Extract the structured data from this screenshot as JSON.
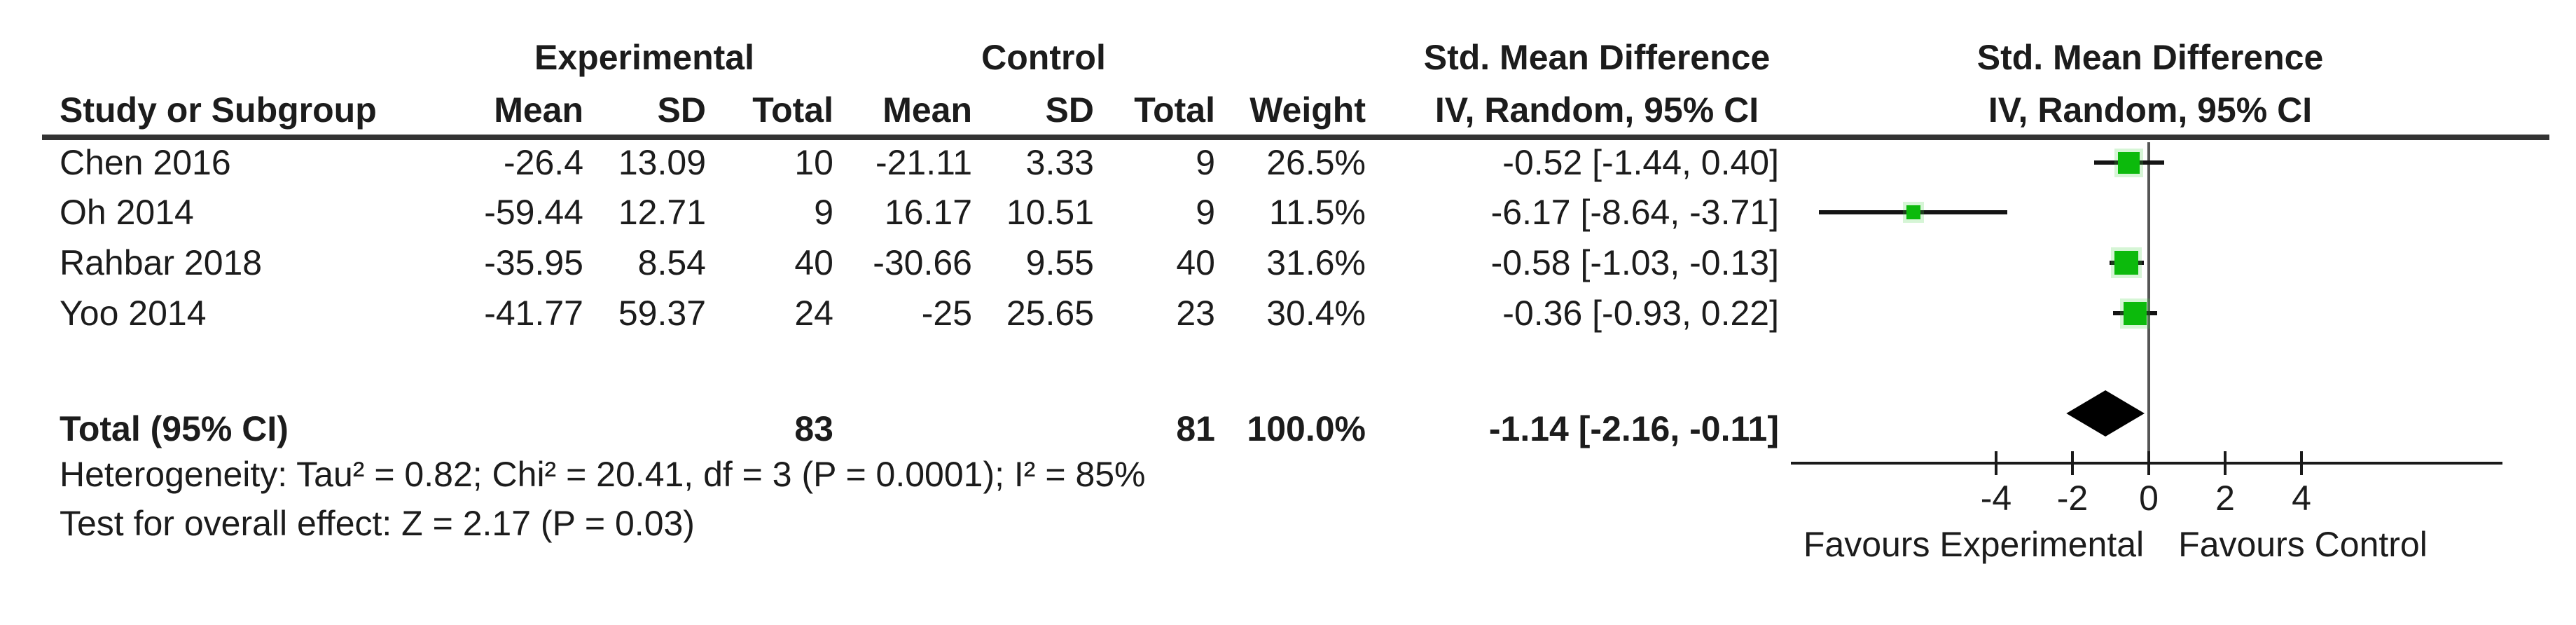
{
  "colors": {
    "marker_green": "#0cba0c",
    "diamond_black": "#000000",
    "text": "#1c1c1c",
    "rule": "#333333",
    "zero_line": "#555555"
  },
  "header": {
    "group": {
      "experimental": "Experimental",
      "control": "Control",
      "smd_text": "Std. Mean Difference",
      "smd_plot": "Std. Mean Difference"
    },
    "cols": {
      "study": "Study or Subgroup",
      "e_mean": "Mean",
      "e_sd": "SD",
      "e_total": "Total",
      "c_mean": "Mean",
      "c_sd": "SD",
      "c_total": "Total",
      "weight": "Weight",
      "iv_text": "IV, Random, 95% CI",
      "iv_plot": "IV, Random, 95% CI"
    }
  },
  "rows": [
    {
      "study": "Chen 2016",
      "e_mean": "-26.4",
      "e_sd": "13.09",
      "e_total": "10",
      "c_mean": "-21.11",
      "c_sd": "3.33",
      "c_total": "9",
      "weight": "26.5%",
      "smd_ci": "-0.52 [-1.44, 0.40]"
    },
    {
      "study": "Oh 2014",
      "e_mean": "-59.44",
      "e_sd": "12.71",
      "e_total": "9",
      "c_mean": "16.17",
      "c_sd": "10.51",
      "c_total": "9",
      "weight": "11.5%",
      "smd_ci": "-6.17 [-8.64, -3.71]"
    },
    {
      "study": "Rahbar 2018",
      "e_mean": "-35.95",
      "e_sd": "8.54",
      "e_total": "40",
      "c_mean": "-30.66",
      "c_sd": "9.55",
      "c_total": "40",
      "weight": "31.6%",
      "smd_ci": "-0.58 [-1.03, -0.13]"
    },
    {
      "study": "Yoo 2014",
      "e_mean": "-41.77",
      "e_sd": "59.37",
      "e_total": "24",
      "c_mean": "-25",
      "c_sd": "25.65",
      "c_total": "23",
      "weight": "30.4%",
      "smd_ci": "-0.36 [-0.93, 0.22]"
    }
  ],
  "total_row": {
    "label": "Total (95% CI)",
    "e_total": "83",
    "c_total": "81",
    "weight": "100.0%",
    "smd_ci": "-1.14 [-2.16, -0.11]"
  },
  "footnotes": {
    "heterogeneity": "Heterogeneity: Tau² = 0.82; Chi² = 20.41, df = 3 (P = 0.0001); I² = 85%",
    "overall_effect": "Test for overall effect: Z = 2.17 (P = 0.03)"
  },
  "axis": {
    "tick_labels": [
      "-4",
      "-2",
      "0",
      "2",
      "4"
    ],
    "favours_left": "Favours Experimental",
    "favours_right": "Favours Control"
  },
  "chart_data": {
    "type": "forest",
    "effect_measure": "Std. Mean Difference",
    "method": "IV, Random, 95% CI",
    "studies": [
      {
        "name": "Chen 2016",
        "exp_mean": -26.4,
        "exp_sd": 13.09,
        "exp_total": 10,
        "ctrl_mean": -21.11,
        "ctrl_sd": 3.33,
        "ctrl_total": 9,
        "weight_pct": 26.5,
        "smd": -0.52,
        "ci_low": -1.44,
        "ci_high": 0.4
      },
      {
        "name": "Oh 2014",
        "exp_mean": -59.44,
        "exp_sd": 12.71,
        "exp_total": 9,
        "ctrl_mean": 16.17,
        "ctrl_sd": 10.51,
        "ctrl_total": 9,
        "weight_pct": 11.5,
        "smd": -6.17,
        "ci_low": -8.64,
        "ci_high": -3.71
      },
      {
        "name": "Rahbar 2018",
        "exp_mean": -35.95,
        "exp_sd": 8.54,
        "exp_total": 40,
        "ctrl_mean": -30.66,
        "ctrl_sd": 9.55,
        "ctrl_total": 40,
        "weight_pct": 31.6,
        "smd": -0.58,
        "ci_low": -1.03,
        "ci_high": -0.13
      },
      {
        "name": "Yoo 2014",
        "exp_mean": -41.77,
        "exp_sd": 59.37,
        "exp_total": 24,
        "ctrl_mean": -25,
        "ctrl_sd": 25.65,
        "ctrl_total": 23,
        "weight_pct": 30.4,
        "smd": -0.36,
        "ci_low": -0.93,
        "ci_high": 0.22
      }
    ],
    "total": {
      "label": "Total (95% CI)",
      "exp_total": 83,
      "ctrl_total": 81,
      "weight_pct": 100.0,
      "smd": -1.14,
      "ci_low": -2.16,
      "ci_high": -0.11
    },
    "heterogeneity": {
      "tau2": 0.82,
      "chi2": 20.41,
      "df": 3,
      "p": 0.0001,
      "i2_pct": 85
    },
    "overall_effect": {
      "z": 2.17,
      "p": 0.03
    },
    "axis_ticks": [
      -4,
      -2,
      0,
      2,
      4
    ],
    "axis_range": [
      -9.4,
      9.4
    ],
    "favours": [
      "Favours Experimental",
      "Favours Control"
    ]
  }
}
